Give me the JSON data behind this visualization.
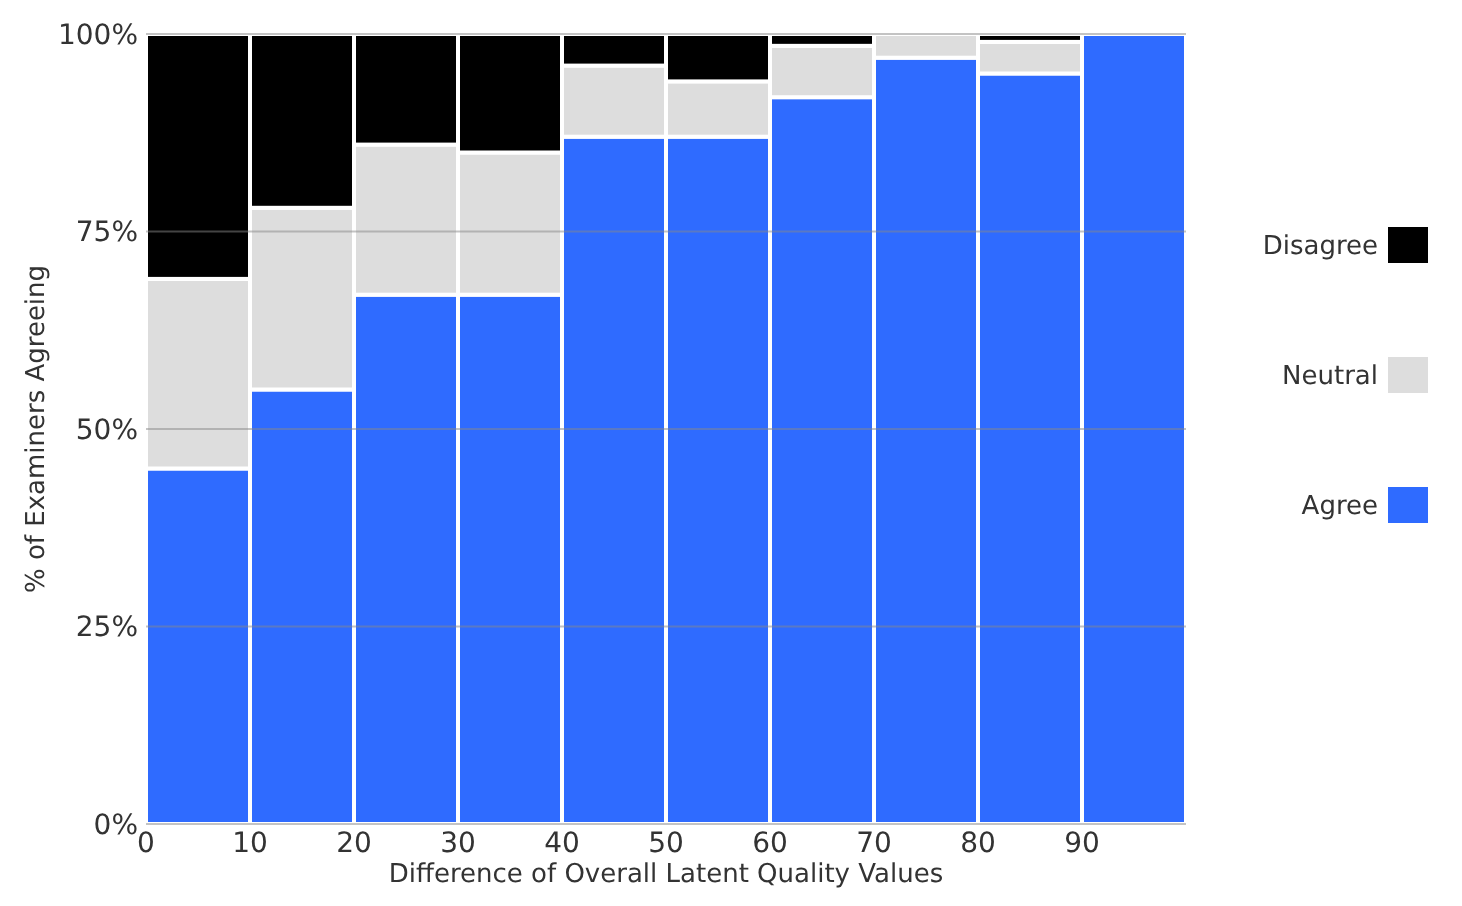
{
  "chart_data": {
    "type": "bar",
    "stacked": true,
    "xlabel": "Difference of Overall Latent Quality Values",
    "ylabel": "% of Examiners Agreeing",
    "x": [
      5,
      15,
      25,
      35,
      45,
      55,
      65,
      75,
      85,
      95
    ],
    "series": [
      {
        "name": "Agree",
        "color": "#2f6bff",
        "values": [
          45,
          55,
          67,
          67,
          87,
          87,
          92,
          97,
          95,
          100
        ]
      },
      {
        "name": "Neutral",
        "color": "#dddddd",
        "values": [
          24,
          23,
          19,
          18,
          9,
          7,
          6.5,
          3,
          4,
          0
        ]
      },
      {
        "name": "Disagree",
        "color": "#000000",
        "values": [
          31,
          22,
          14,
          15,
          4,
          6,
          1.5,
          0,
          1,
          0
        ]
      }
    ],
    "xlim": [
      0,
      100
    ],
    "xticks": [
      0,
      10,
      20,
      30,
      40,
      50,
      60,
      70,
      80,
      90
    ],
    "ylim": [
      0,
      100
    ],
    "yticks": [
      {
        "value": 0,
        "label": "0%"
      },
      {
        "value": 25,
        "label": "25%"
      },
      {
        "value": 50,
        "label": "50%"
      },
      {
        "value": 75,
        "label": "75%"
      },
      {
        "value": 100,
        "label": "100%"
      }
    ],
    "grid": "y",
    "legend": "right"
  }
}
